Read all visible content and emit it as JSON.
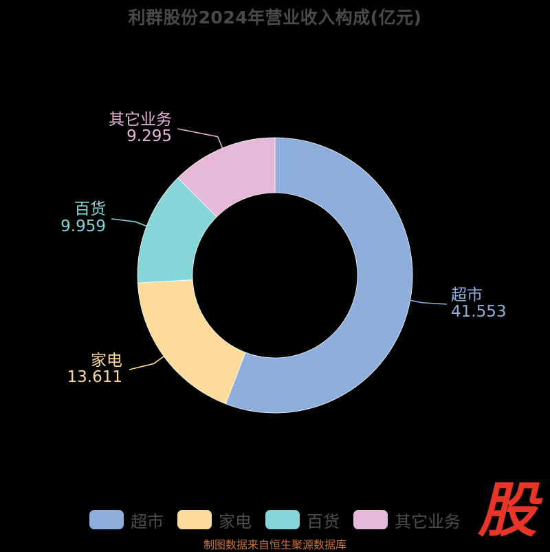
{
  "title": "利群股份2024年营业收入构成(亿元)",
  "footer": "制图数据来自恒生聚源数据库",
  "watermark": "股",
  "colors": {
    "background": "#000000",
    "title": "#4a4a4a",
    "footer": "#c8743a",
    "watermark": "#e8352a"
  },
  "chart_data": {
    "type": "pie",
    "variant": "donut",
    "title": "利群股份2024年营业收入构成(亿元)",
    "unit": "亿元",
    "legend_position": "bottom",
    "slices": [
      {
        "name": "超市",
        "value": 41.553,
        "color": "#8eaedc"
      },
      {
        "name": "家电",
        "value": 13.611,
        "color": "#fddb9a"
      },
      {
        "name": "百货",
        "value": 9.959,
        "color": "#86d6d8"
      },
      {
        "name": "其它业务",
        "value": 9.295,
        "color": "#e6b8d8"
      }
    ]
  }
}
